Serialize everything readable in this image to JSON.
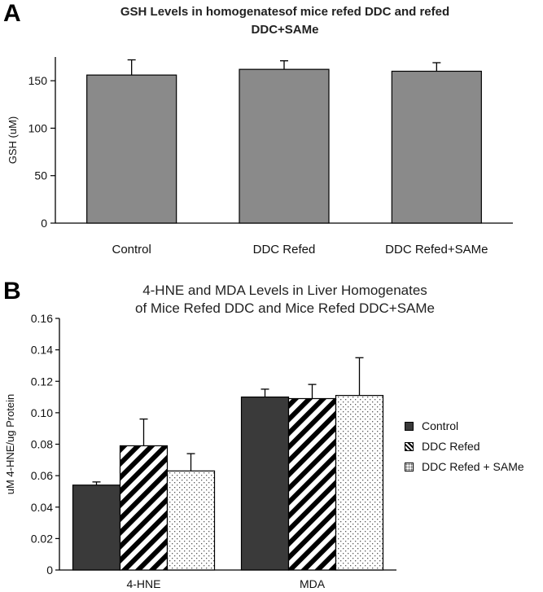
{
  "panels": {
    "a": {
      "letter": "A",
      "title_line1": "GSH Levels in homogenatesof mice refed DDC and refed",
      "title_line2": "DDC+SAMe"
    },
    "b": {
      "letter": "B",
      "title_line1": "4-HNE and MDA Levels in Liver Homogenates",
      "title_line2": "of Mice Refed DDC and Mice Refed DDC+SAMe"
    }
  },
  "chart_data": [
    {
      "type": "bar",
      "title": "GSH Levels in homogenatesof mice refed DDC and refed DDC+SAMe",
      "categories": [
        "Control",
        "DDC Refed",
        "DDC Refed+SAMe"
      ],
      "values": [
        156,
        162,
        160
      ],
      "errors": [
        16,
        9,
        9
      ],
      "ylabel": "GSH (uM)",
      "xlabel": "",
      "ylim": [
        0,
        175
      ],
      "yticks": [
        0,
        50,
        100,
        150
      ],
      "grid": false,
      "bar_color": "#8a8a8a"
    },
    {
      "type": "bar",
      "title": "4-HNE and MDA Levels in Liver Homogenates of Mice Refed DDC and Mice Refed DDC+SAMe",
      "categories": [
        "4-HNE",
        "MDA"
      ],
      "series": [
        {
          "name": "Control",
          "values": [
            0.054,
            0.11
          ],
          "errors": [
            0.002,
            0.005
          ],
          "pattern": "solid",
          "color": "#3a3a3a"
        },
        {
          "name": "DDC Refed",
          "values": [
            0.079,
            0.109
          ],
          "errors": [
            0.017,
            0.009
          ],
          "pattern": "diagonal-stripes",
          "color": "#000000"
        },
        {
          "name": "DDC Refed + SAMe",
          "values": [
            0.063,
            0.111
          ],
          "errors": [
            0.011,
            0.024
          ],
          "pattern": "dots",
          "color": "#555555"
        }
      ],
      "ylabel": "uM 4-HNE/ug Protein",
      "xlabel": "",
      "ylim": [
        0,
        0.16
      ],
      "yticks": [
        "0",
        "0.02",
        "0.04",
        "0.06",
        "0.08",
        "0.10",
        "0.12",
        "0.14",
        "0.16"
      ],
      "grid": false,
      "legend": "right"
    }
  ]
}
